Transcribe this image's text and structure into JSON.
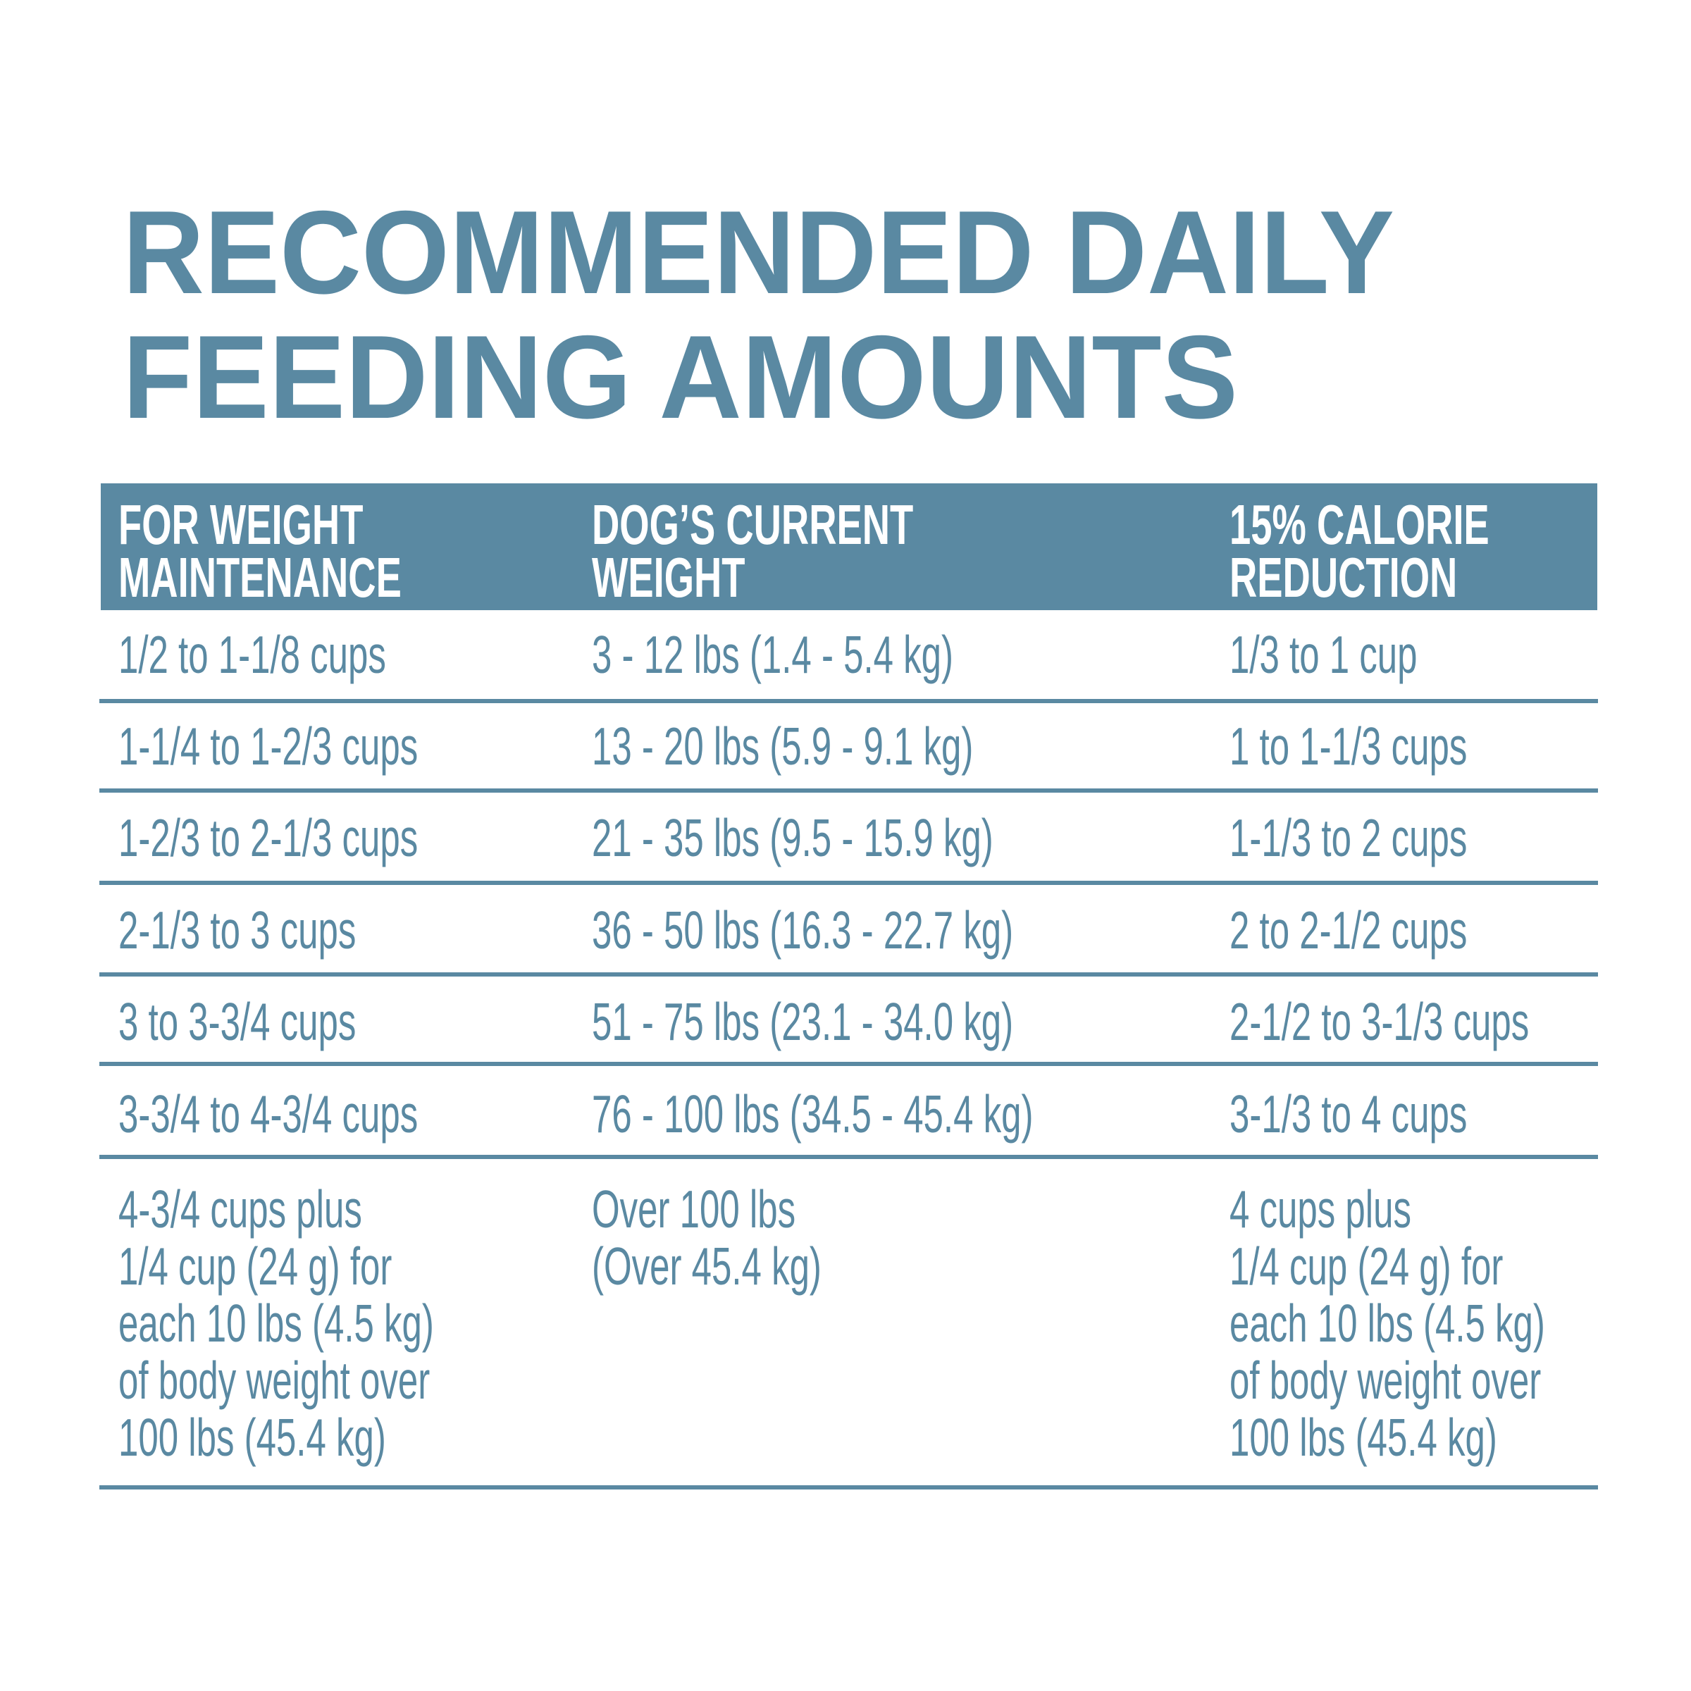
{
  "title": [
    "RECOMMENDED DAILY",
    "FEEDING AMOUNTS"
  ],
  "table": {
    "headers": [
      [
        "FOR WEIGHT",
        "MAINTENANCE"
      ],
      [
        "DOG’S CURRENT",
        "WEIGHT"
      ],
      [
        "15% CALORIE",
        "REDUCTION"
      ]
    ],
    "rows": [
      [
        [
          "1/2 to 1-1/8 cups"
        ],
        [
          "3 - 12 lbs (1.4 - 5.4 kg)"
        ],
        [
          "1/3 to 1 cup"
        ]
      ],
      [
        [
          "1-1/4 to 1-2/3 cups"
        ],
        [
          "13 - 20 lbs (5.9 - 9.1 kg)"
        ],
        [
          "1 to 1-1/3 cups"
        ]
      ],
      [
        [
          "1-2/3 to 2-1/3 cups"
        ],
        [
          "21 - 35 lbs (9.5 - 15.9 kg)"
        ],
        [
          "1-1/3 to 2 cups"
        ]
      ],
      [
        [
          "2-1/3 to 3 cups"
        ],
        [
          "36 - 50 lbs (16.3 - 22.7 kg)"
        ],
        [
          "2 to 2-1/2 cups"
        ]
      ],
      [
        [
          "3 to 3-3/4 cups"
        ],
        [
          "51 - 75 lbs (23.1 - 34.0 kg)"
        ],
        [
          "2-1/2 to 3-1/3 cups"
        ]
      ],
      [
        [
          "3-3/4 to 4-3/4 cups"
        ],
        [
          "76 - 100 lbs (34.5 - 45.4 kg)"
        ],
        [
          "3-1/3 to 4 cups"
        ]
      ],
      [
        [
          "4-3/4 cups plus",
          "1/4 cup (24 g) for",
          "each 10 lbs (4.5 kg)",
          "of body weight over",
          "100 lbs (45.4 kg)"
        ],
        [
          "Over 100 lbs",
          "(Over 45.4 kg)"
        ],
        [
          "4 cups plus",
          "1/4 cup (24 g) for",
          "each 10 lbs (4.5 kg)",
          "of body weight over",
          "100 lbs (45.4 kg)"
        ]
      ]
    ]
  }
}
